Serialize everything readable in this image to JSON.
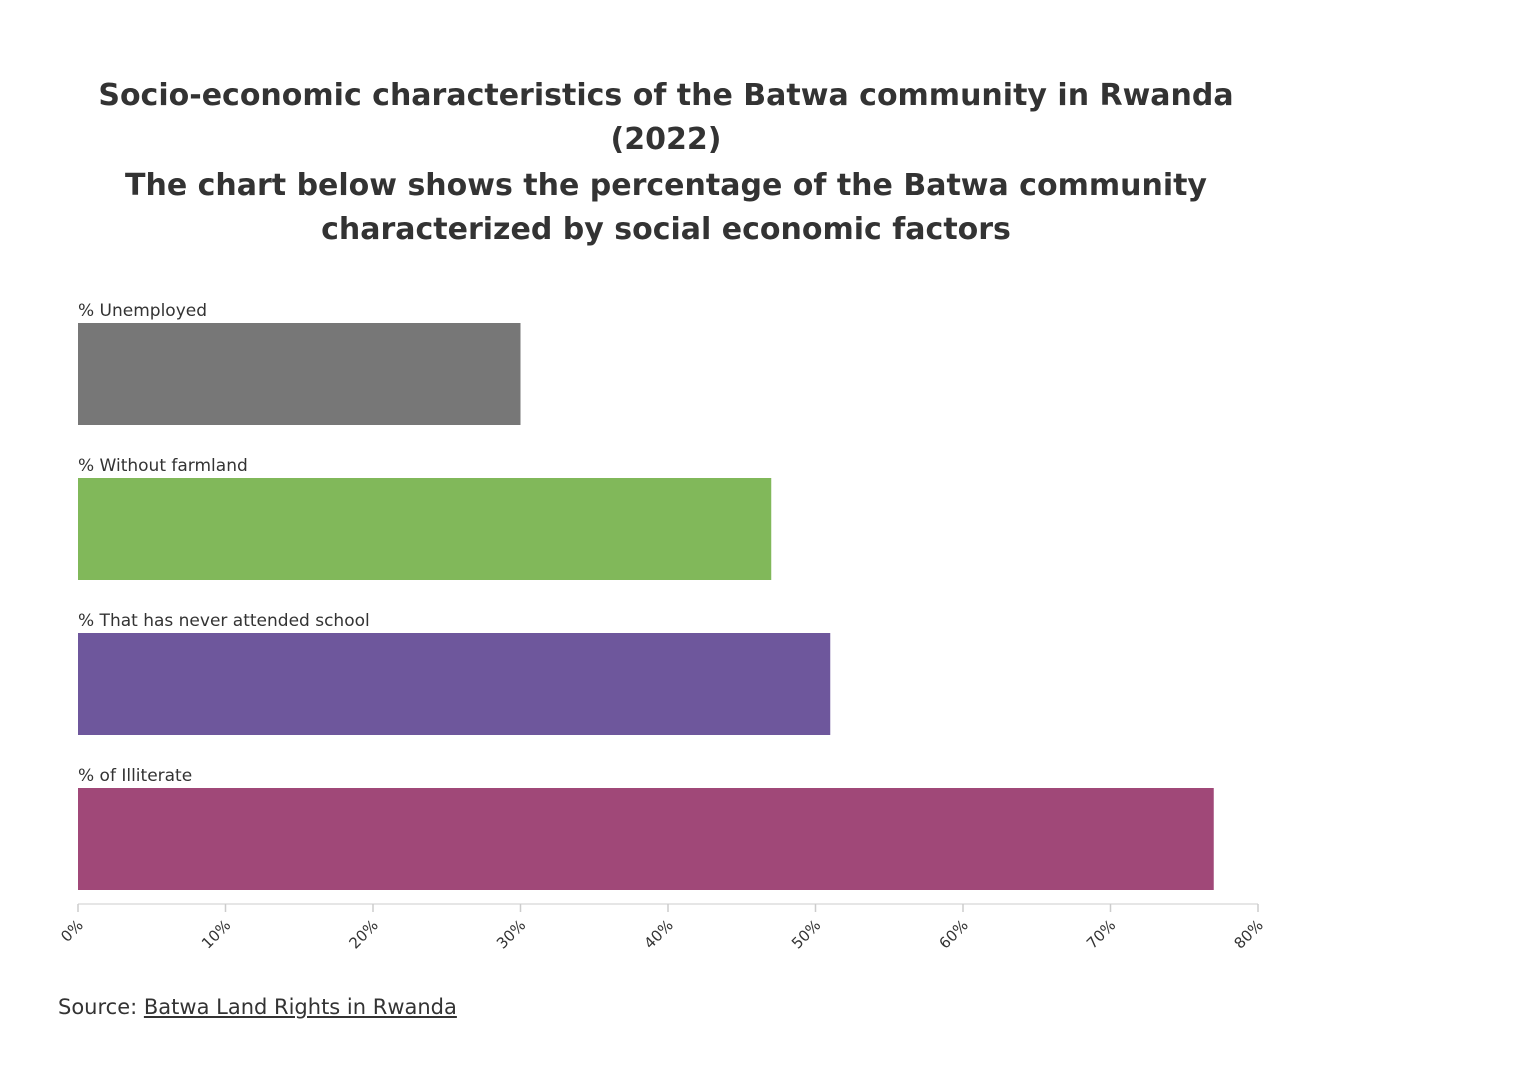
{
  "chart_data": {
    "type": "bar",
    "orientation": "horizontal",
    "title": "Socio-economic characteristics of the Batwa community in Rwanda (2022)",
    "subtitle": "The chart below shows the percentage of the Batwa community characterized by social economic factors",
    "categories": [
      "% Unemployed",
      "% Without farmland",
      "% That has never attended school",
      "% of Illiterate"
    ],
    "values": [
      30,
      47,
      51,
      77
    ],
    "colors": [
      "#777777",
      "#81b85a",
      "#6e579c",
      "#a04878"
    ],
    "xlim": [
      0,
      80
    ],
    "xticks": [
      "0%",
      "10%",
      "20%",
      "30%",
      "40%",
      "50%",
      "60%",
      "70%",
      "80%"
    ],
    "grid": false
  },
  "source": {
    "label": "Source: ",
    "link_text": "Batwa Land Rights in Rwanda"
  }
}
